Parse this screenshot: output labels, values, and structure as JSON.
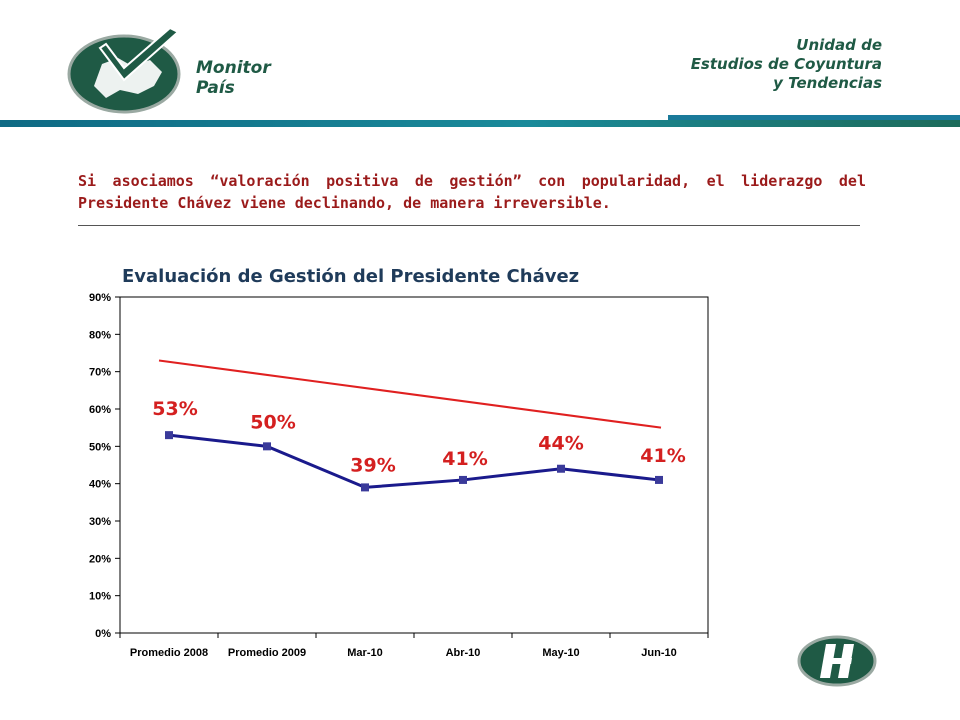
{
  "header": {
    "brand_line1": "Monitor",
    "brand_line2": "País",
    "unit_line1": "Unidad de",
    "unit_line2": "Estudios de Coyuntura",
    "unit_line3": "y Tendencias"
  },
  "headline": "Si asociamos “valoración positiva de gestión” con popularidad, el liderazgo del Presidente Chávez viene declinando, de manera irreversible.",
  "colors": {
    "brand_green": "#1f5a45",
    "header_bar": "#1a7a8c",
    "headline_red": "#9b1b1b",
    "series_navy": "#1a1a8c",
    "trend_red": "#e02020",
    "label_red": "#d42020"
  },
  "chart_data": {
    "type": "line",
    "title": "Evaluación de Gestión del Presidente Chávez",
    "categories": [
      "Promedio 2008",
      "Promedio 2009",
      "Mar-10",
      "Abr-10",
      "May-10",
      "Jun-10"
    ],
    "series": [
      {
        "values": [
          53,
          50,
          39,
          41,
          44,
          41
        ]
      }
    ],
    "data_labels": [
      "53%",
      "50%",
      "39%",
      "41%",
      "44%",
      "41%"
    ],
    "trendline": {
      "start": 73,
      "end": 55
    },
    "ylim": [
      0,
      90
    ],
    "yticks": [
      "0%",
      "10%",
      "20%",
      "30%",
      "40%",
      "50%",
      "60%",
      "70%",
      "80%",
      "90%"
    ],
    "grid": false,
    "legend": "none"
  }
}
